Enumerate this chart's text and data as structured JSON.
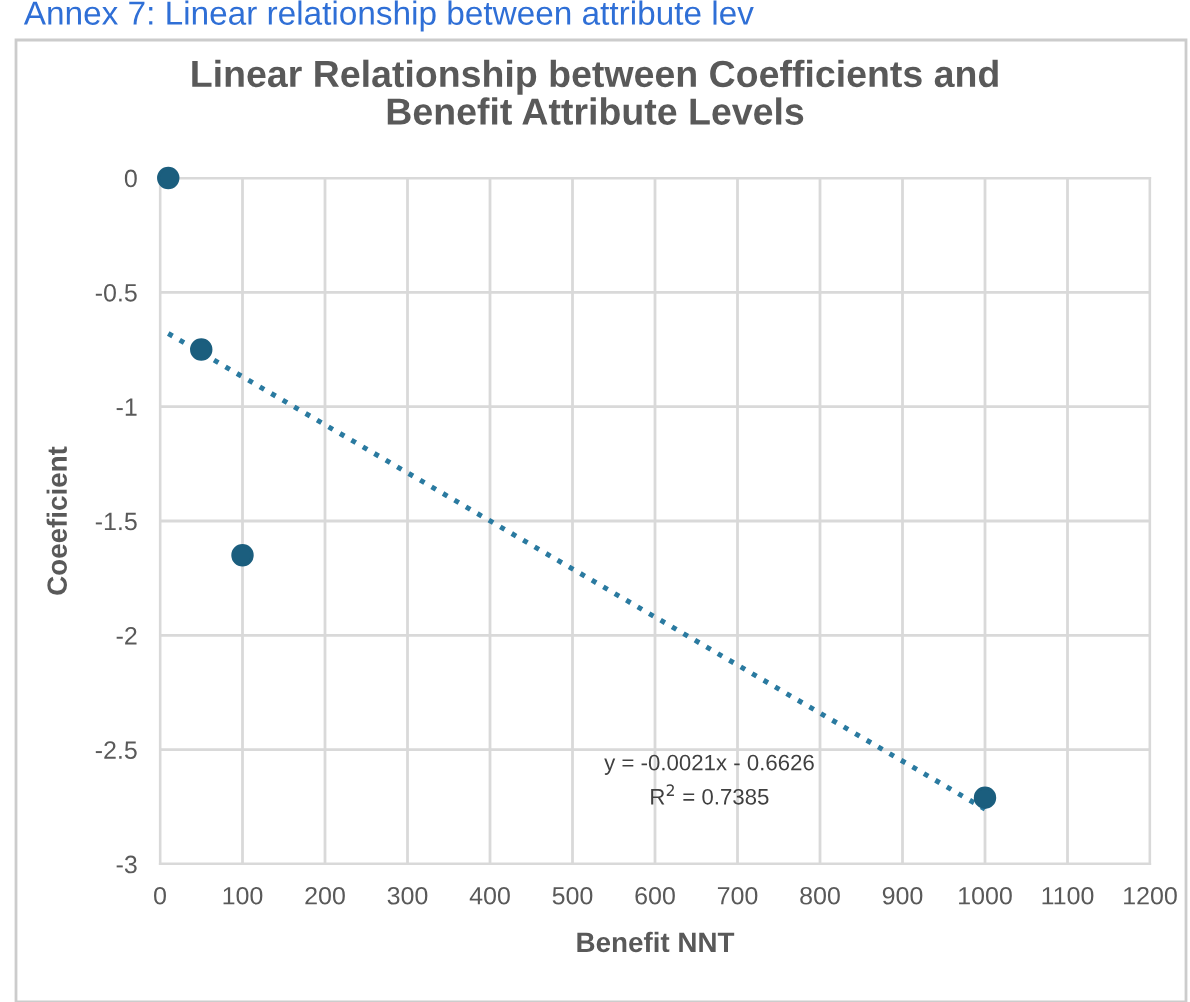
{
  "chart_data": {
    "type": "scatter",
    "title": "Linear Relationship between Coefficients and\nBenefit Attribute Levels",
    "xlabel": "Benefit NNT",
    "ylabel": "Coeeficient",
    "series": [
      {
        "color": "#1b5e7e",
        "x": [
          10,
          50,
          100,
          1000
        ],
        "values": [
          0,
          -0.75,
          -1.65,
          -2.71
        ],
        "marker": "circle"
      },
      {
        "type": "line",
        "color": "#2a7aa0",
        "x": [
          10,
          1000
        ],
        "values": [
          -0.68,
          -2.76
        ],
        "line_style": "dotted",
        "marker": "none"
      }
    ],
    "annotations": [
      "Annex 7: Linear relationship between attribute lev",
      "y = -0.0021x - 0.6626",
      "R$^{2}$ = 0.7385"
    ],
    "xlim": [
      0,
      1200
    ],
    "xticks": [
      0,
      100,
      200,
      300,
      400,
      500,
      600,
      700,
      800,
      900,
      1000,
      1100,
      1200
    ],
    "ylim": [
      -3,
      0
    ],
    "yticks": [
      0,
      -0.5,
      -1,
      -1.5,
      -2,
      -2.5,
      -3
    ],
    "grid": true
  }
}
